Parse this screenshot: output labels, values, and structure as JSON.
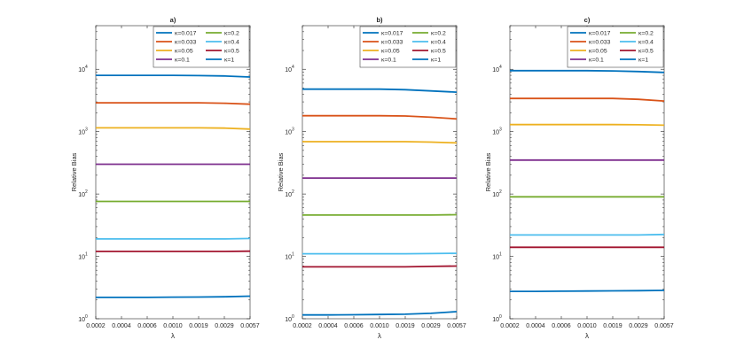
{
  "chart_data": [
    {
      "type": "line",
      "title": "a)",
      "xlabel": "λ",
      "ylabel": "Relative Bias",
      "yscale": "log",
      "ylim": [
        1,
        50000
      ],
      "categories": [
        "0.0002",
        "0.0004",
        "0.0006",
        "0.0010",
        "0.0019",
        "0.0029",
        "0.0057"
      ],
      "yticks": [
        {
          "value": 1,
          "base": "10",
          "exp": "0"
        },
        {
          "value": 10,
          "base": "10",
          "exp": "1"
        },
        {
          "value": 100,
          "base": "10",
          "exp": "2"
        },
        {
          "value": 1000,
          "base": "10",
          "exp": "3"
        },
        {
          "value": 10000,
          "base": "10",
          "exp": "4"
        }
      ],
      "grid": false,
      "legend_position": "top-right",
      "legend_columns": 2,
      "series": [
        {
          "name": "κ=0.017",
          "color": "#0072BD",
          "values": [
            8000,
            8000,
            8000,
            8000,
            7900,
            7800,
            7500
          ]
        },
        {
          "name": "κ=0.2",
          "color": "#77AC30",
          "values": [
            76,
            76,
            76,
            76,
            76,
            76,
            76
          ]
        },
        {
          "name": "κ=0.033",
          "color": "#D95319",
          "values": [
            2900,
            2900,
            2900,
            2900,
            2900,
            2850,
            2750
          ]
        },
        {
          "name": "κ=0.4",
          "color": "#4DBEEE",
          "values": [
            19,
            19,
            19,
            19,
            19,
            19,
            19.3
          ]
        },
        {
          "name": "κ=0.05",
          "color": "#EDB120",
          "values": [
            1150,
            1150,
            1150,
            1150,
            1150,
            1140,
            1100
          ]
        },
        {
          "name": "κ=0.5",
          "color": "#A2142F",
          "values": [
            12,
            12,
            12,
            12,
            12,
            12,
            12.1
          ]
        },
        {
          "name": "κ=0.1",
          "color": "#7E2F8E",
          "values": [
            300,
            300,
            300,
            300,
            300,
            300,
            300
          ]
        },
        {
          "name": "κ=1",
          "color": "#0072BD",
          "values": [
            2.2,
            2.2,
            2.2,
            2.22,
            2.23,
            2.25,
            2.3
          ]
        }
      ]
    },
    {
      "type": "line",
      "title": "b)",
      "xlabel": "λ",
      "ylabel": "Relative Bias",
      "yscale": "log",
      "ylim": [
        1,
        50000
      ],
      "categories": [
        "0.0002",
        "0.0004",
        "0.0006",
        "0.0010",
        "0.0019",
        "0.0029",
        "0.0057"
      ],
      "yticks": [
        {
          "value": 1,
          "base": "10",
          "exp": "0"
        },
        {
          "value": 10,
          "base": "10",
          "exp": "1"
        },
        {
          "value": 100,
          "base": "10",
          "exp": "2"
        },
        {
          "value": 1000,
          "base": "10",
          "exp": "3"
        },
        {
          "value": 10000,
          "base": "10",
          "exp": "4"
        }
      ],
      "grid": false,
      "legend_position": "top-right",
      "legend_columns": 2,
      "series": [
        {
          "name": "κ=0.017",
          "color": "#0072BD",
          "values": [
            4800,
            4800,
            4800,
            4800,
            4700,
            4500,
            4300
          ]
        },
        {
          "name": "κ=0.2",
          "color": "#77AC30",
          "values": [
            46,
            46,
            46,
            46,
            46,
            46,
            46.5
          ]
        },
        {
          "name": "κ=0.033",
          "color": "#D95319",
          "values": [
            1800,
            1800,
            1800,
            1800,
            1780,
            1700,
            1600
          ]
        },
        {
          "name": "κ=0.4",
          "color": "#4DBEEE",
          "values": [
            11,
            11,
            11,
            11,
            11,
            11.1,
            11.2
          ]
        },
        {
          "name": "κ=0.05",
          "color": "#EDB120",
          "values": [
            690,
            690,
            690,
            690,
            690,
            680,
            660
          ]
        },
        {
          "name": "κ=0.5",
          "color": "#A2142F",
          "values": [
            6.8,
            6.8,
            6.8,
            6.8,
            6.8,
            6.9,
            7.0
          ]
        },
        {
          "name": "κ=0.1",
          "color": "#7E2F8E",
          "values": [
            180,
            180,
            180,
            180,
            180,
            180,
            180
          ]
        },
        {
          "name": "κ=1",
          "color": "#0072BD",
          "values": [
            1.15,
            1.15,
            1.16,
            1.17,
            1.18,
            1.22,
            1.3
          ]
        }
      ]
    },
    {
      "type": "line",
      "title": "c)",
      "xlabel": "λ",
      "ylabel": "Relative Bias",
      "yscale": "log",
      "ylim": [
        1,
        50000
      ],
      "categories": [
        "0.0002",
        "0.0004",
        "0.0006",
        "0.0010",
        "0.0019",
        "0.0029",
        "0.0057"
      ],
      "yticks": [
        {
          "value": 1,
          "base": "10",
          "exp": "0"
        },
        {
          "value": 10,
          "base": "10",
          "exp": "1"
        },
        {
          "value": 100,
          "base": "10",
          "exp": "2"
        },
        {
          "value": 1000,
          "base": "10",
          "exp": "3"
        },
        {
          "value": 10000,
          "base": "10",
          "exp": "4"
        }
      ],
      "grid": false,
      "legend_position": "top-right",
      "legend_columns": 2,
      "series": [
        {
          "name": "κ=0.017",
          "color": "#0072BD",
          "values": [
            9500,
            9500,
            9500,
            9500,
            9400,
            9200,
            8900
          ]
        },
        {
          "name": "κ=0.2",
          "color": "#77AC30",
          "values": [
            90,
            90,
            90,
            90,
            90,
            90,
            90
          ]
        },
        {
          "name": "κ=0.033",
          "color": "#D95319",
          "values": [
            3400,
            3400,
            3400,
            3400,
            3400,
            3300,
            3100
          ]
        },
        {
          "name": "κ=0.4",
          "color": "#4DBEEE",
          "values": [
            22,
            22,
            22,
            22,
            22,
            22,
            22.5
          ]
        },
        {
          "name": "κ=0.05",
          "color": "#EDB120",
          "values": [
            1300,
            1300,
            1300,
            1300,
            1300,
            1290,
            1270
          ]
        },
        {
          "name": "κ=0.5",
          "color": "#A2142F",
          "values": [
            14,
            14,
            14,
            14,
            14,
            14,
            14
          ]
        },
        {
          "name": "κ=0.1",
          "color": "#7E2F8E",
          "values": [
            350,
            350,
            350,
            350,
            350,
            350,
            350
          ]
        },
        {
          "name": "κ=1",
          "color": "#0072BD",
          "values": [
            2.75,
            2.75,
            2.76,
            2.78,
            2.8,
            2.82,
            2.85
          ]
        }
      ]
    }
  ]
}
